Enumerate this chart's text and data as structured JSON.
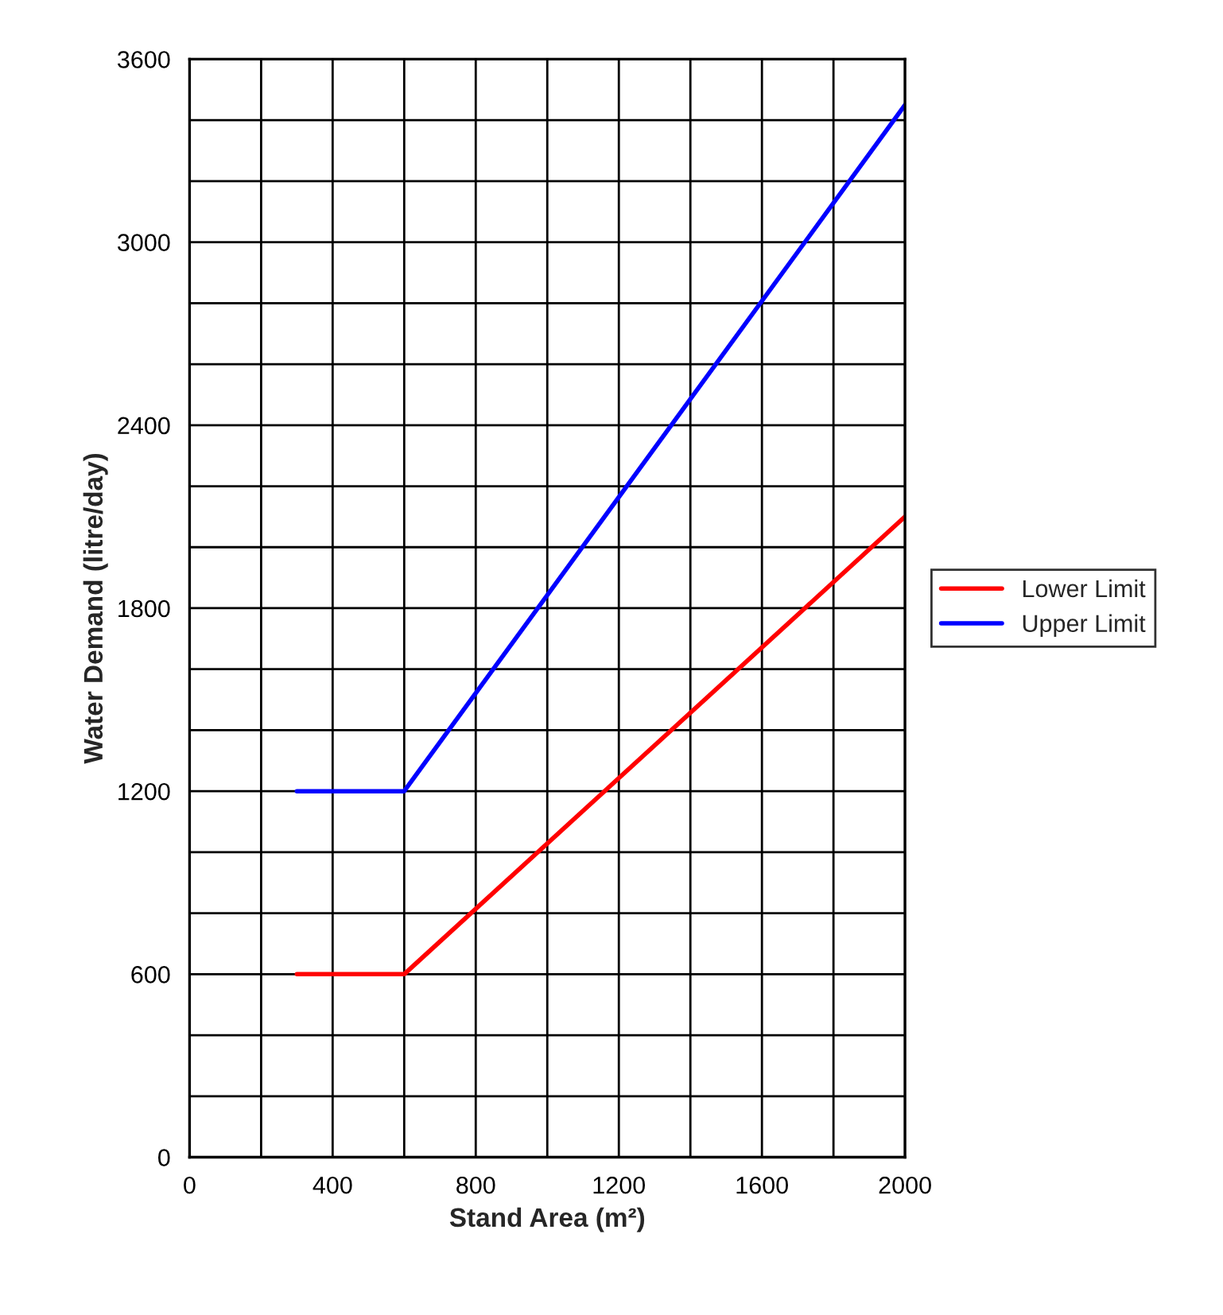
{
  "chart_data": {
    "type": "line",
    "xlabel": "Stand Area (m²)",
    "ylabel": "Water Demand (litre/day)",
    "series": [
      {
        "name": "Lower Limit",
        "color": "#ff0000",
        "x": [
          300,
          600,
          2000
        ],
        "values": [
          600,
          600,
          2100
        ]
      },
      {
        "name": "Upper Limit",
        "color": "#0000ff",
        "x": [
          300,
          600,
          2000
        ],
        "values": [
          1200,
          1200,
          3450
        ]
      }
    ],
    "xlim": [
      0,
      2000
    ],
    "ylim": [
      0,
      3600
    ],
    "xticks": [
      0,
      {
        "value": 200,
        "label": null
      },
      400,
      {
        "value": 600,
        "label": null
      },
      800,
      {
        "value": 1000,
        "label": null
      },
      1200,
      {
        "value": 1400,
        "label": null
      },
      1600,
      {
        "value": 1800,
        "label": null
      },
      2000
    ],
    "yticks": [
      0,
      {
        "value": 200,
        "label": null
      },
      {
        "value": 400,
        "label": null
      },
      600,
      {
        "value": 800,
        "label": null
      },
      {
        "value": 1000,
        "label": null
      },
      1200,
      {
        "value": 1400,
        "label": null
      },
      {
        "value": 1600,
        "label": null
      },
      1800,
      {
        "value": 2000,
        "label": null
      },
      {
        "value": 2200,
        "label": null
      },
      2400,
      {
        "value": 2600,
        "label": null
      },
      {
        "value": 2800,
        "label": null
      },
      3000,
      {
        "value": 3200,
        "label": null
      },
      {
        "value": 3400,
        "label": null
      },
      3600
    ],
    "grid": true,
    "legend": "right",
    "marker": "none",
    "line_style": "solid"
  }
}
